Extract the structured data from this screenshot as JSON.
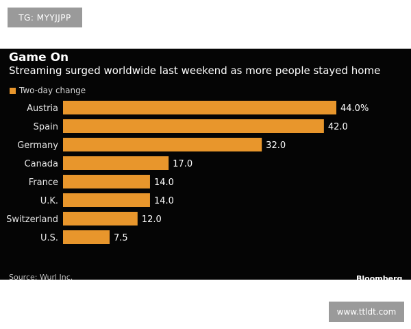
{
  "watermark_top": "TG: MYYJJPP",
  "watermark_bottom": "www.ttldt.com",
  "source": "Source: Wurl Inc.",
  "logo": "Bloomberg",
  "colors": {
    "bar": "#e8962c",
    "background": "#050505",
    "text": "#ffffff"
  },
  "chart_data": {
    "type": "bar",
    "orientation": "horizontal",
    "title": "Game On",
    "subtitle": "Streaming surged worldwide last weekend as more people stayed home",
    "legend": [
      "Two-day change"
    ],
    "categories": [
      "Austria",
      "Spain",
      "Germany",
      "Canada",
      "France",
      "U.K.",
      "Switzerland",
      "U.S."
    ],
    "values": [
      44.0,
      42.0,
      32.0,
      17.0,
      14.0,
      14.0,
      12.0,
      7.5
    ],
    "value_labels": [
      "44.0%",
      "42.0",
      "32.0",
      "17.0",
      "14.0",
      "14.0",
      "12.0",
      "7.5"
    ],
    "xlim": [
      0,
      44
    ],
    "xlabel": "",
    "ylabel": "",
    "grid": false
  }
}
